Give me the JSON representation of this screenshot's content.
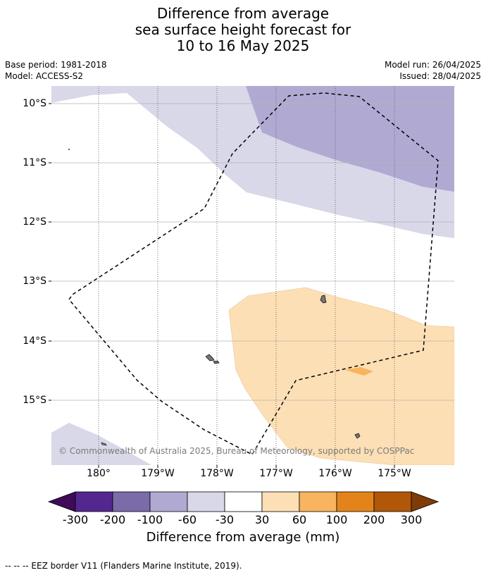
{
  "title": {
    "line1": "Difference from average",
    "line2": "sea surface height forecast for",
    "line3": "10 to 16 May 2025"
  },
  "meta": {
    "base_period": "Base period: 1981-2018",
    "model": "Model: ACCESS-S2",
    "model_run": "Model run: 26/04/2025",
    "issued": "Issued: 28/04/2025"
  },
  "map": {
    "lat_ticks": [
      "10°S",
      "11°S",
      "12°S",
      "13°S",
      "14°S",
      "15°S"
    ],
    "lon_ticks": [
      "180°",
      "179°W",
      "178°W",
      "177°W",
      "176°W",
      "175°W"
    ],
    "copyright": "© Commonwealth of Australia 2025, Bureau of Meteorology, supported by COSPPac"
  },
  "colorbar": {
    "title": "Difference from average (mm)",
    "tick_labels": [
      "-300",
      "-200",
      "-100",
      "-60",
      "-30",
      "30",
      "60",
      "100",
      "200",
      "300"
    ],
    "colors": {
      "below_-300": "#3f0a57",
      "-300_-200": "#54278f",
      "-200_-100": "#7b6ba9",
      "-100_-60": "#b0aad2",
      "-60_-30": "#d8d8e9",
      "-30_30": "#ffffff",
      "30_60": "#fddfb5",
      "60_100": "#f8b45e",
      "100_200": "#e3841a",
      "200_300": "#b15708",
      "above_300": "#7f3b08"
    }
  },
  "legend": {
    "eez_note": "--  --  -- EEZ border V11 (Flanders Marine Institute, 2019)."
  }
}
